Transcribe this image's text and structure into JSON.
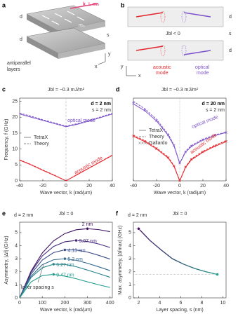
{
  "figure": {
    "a": {
      "label": "a",
      "wave_vector": "k ⊥ m₀",
      "magnetization": "m₀",
      "thickness_top": "d",
      "spacing": "s",
      "thickness_bottom": "d",
      "axis_y": "y",
      "axis_x": "x",
      "caption": [
        "antiparallel",
        "layers"
      ]
    },
    "b": {
      "label": "b",
      "coupling": "Jbl < 0",
      "thickness_top": "d",
      "spacing": "s",
      "thickness_bottom": "d",
      "axis_y": "y",
      "axis_x": "x",
      "acoustic": [
        "acoustic",
        "mode"
      ],
      "optical": [
        "optical",
        "mode"
      ]
    }
  },
  "chart_data": [
    {
      "type": "line",
      "label": "c",
      "title": "Jbl = −0.3 mJ/m²",
      "annotations": [
        "d = 2 nm",
        "s = 2 nm"
      ],
      "xlabel": "Wave vector, k (rad/μm)",
      "ylabel": "Frequency, f (GHz)",
      "xlim": [
        -40,
        40
      ],
      "ylim": [
        0,
        26
      ],
      "xticks": [
        -40,
        -20,
        0,
        20,
        40
      ],
      "yticks": [
        0,
        5,
        10,
        15,
        20,
        25
      ],
      "x": [
        -40,
        -30,
        -20,
        -10,
        0,
        10,
        20,
        30,
        40
      ],
      "legend": [
        {
          "name": "TetraX",
          "style": "solid"
        },
        {
          "name": "Theory",
          "style": "dashed"
        }
      ],
      "series": [
        {
          "name": "optical mode",
          "color": "#7b52c9",
          "values": [
            [
              21.0,
              20.0,
              19.0,
              18.0,
              17.0,
              17.8,
              18.8,
              19.9,
              21.0
            ],
            [
              21.3,
              20.3,
              19.2,
              18.2,
              17.2,
              18.0,
              19.0,
              20.1,
              21.2
            ]
          ]
        },
        {
          "name": "acoustic mode",
          "color": "#e3262d",
          "values": [
            [
              6.5,
              5.0,
              3.3,
              1.7,
              0,
              2.0,
              4.0,
              6.0,
              8.0
            ],
            [
              6.6,
              5.1,
              3.4,
              1.8,
              0,
              2.1,
              4.1,
              6.1,
              8.1
            ]
          ]
        }
      ]
    },
    {
      "type": "line",
      "label": "d",
      "title": "Jbl = −0.3 mJ/m²",
      "annotations": [
        "d = 20 nm",
        "s = 2 nm"
      ],
      "xlabel": "Wave vector, k (rad/μm)",
      "xlim": [
        -40,
        40
      ],
      "ylim": [
        0,
        26
      ],
      "xticks": [
        -40,
        -20,
        0,
        20,
        40
      ],
      "x": [
        -40,
        -30,
        -20,
        -10,
        -5,
        0,
        5,
        10,
        20,
        30,
        40
      ],
      "legend": [
        {
          "name": "TetraX",
          "style": "solid"
        },
        {
          "name": "Theory",
          "style": "dashed"
        },
        {
          "name": "Gallardo",
          "style": "cross"
        }
      ],
      "series": [
        {
          "name": "optical mode",
          "color": "#7b52c9",
          "values": [
            [
              24.2,
              22.0,
              18.8,
              14.3,
              11.0,
              5.5,
              9.0,
              10.8,
              12.8,
              14.2,
              15.2
            ],
            [
              25.0,
              22.6,
              19.3,
              14.7,
              11.3,
              5.5,
              9.3,
              11.1,
              13.1,
              14.4,
              15.3
            ],
            [
              24.4,
              22.2,
              18.9,
              14.4,
              11.1,
              5.6,
              9.1,
              10.9,
              12.9,
              14.3,
              15.2
            ]
          ]
        },
        {
          "name": "acoustic mode",
          "color": "#e3262d",
          "values": [
            [
              14.0,
              12.3,
              10.0,
              7.2,
              4.6,
              0,
              4.2,
              6.6,
              9.0,
              10.8,
              12.3
            ],
            [
              14.3,
              12.6,
              10.3,
              7.5,
              4.8,
              0,
              4.4,
              6.9,
              9.3,
              11.1,
              12.6
            ],
            [
              14.1,
              12.4,
              10.1,
              7.3,
              4.7,
              0,
              4.3,
              6.7,
              9.1,
              10.9,
              12.4
            ]
          ]
        }
      ]
    },
    {
      "type": "line",
      "label": "e",
      "title": "Jbl = 0",
      "annotations": [
        "d = 2 nm",
        "layer spacing s"
      ],
      "xlabel": "Wave vector, k (rad/μm)",
      "ylabel": "Asymmetry, |Δf| (GHz)",
      "xlim": [
        0,
        410
      ],
      "ylim": [
        0,
        5.8
      ],
      "xticks": [
        0,
        100,
        200,
        300,
        400
      ],
      "yticks": [
        0,
        1,
        2,
        3,
        4,
        5
      ],
      "x": [
        0,
        50,
        100,
        150,
        200,
        250,
        300,
        350,
        400
      ],
      "series": [
        {
          "name": "2 nm",
          "color": "#3b0f5e",
          "values": [
            0,
            2.03,
            3.44,
            4.37,
            4.93,
            5.22,
            5.3,
            5.23,
            5.07
          ]
        },
        {
          "name": "3.07 nm",
          "color": "#43287a",
          "values": [
            0,
            1.96,
            3.21,
            3.94,
            4.3,
            4.4,
            4.32,
            4.13,
            3.86
          ]
        },
        {
          "name": "4.13 nm",
          "color": "#3b4c8a",
          "values": [
            0,
            1.82,
            2.9,
            3.47,
            3.68,
            3.67,
            3.51,
            3.26,
            2.97
          ]
        },
        {
          "name": "5.2 nm",
          "color": "#33688e",
          "values": [
            0,
            1.65,
            2.54,
            2.92,
            3.0,
            2.88,
            2.65,
            2.38,
            2.09
          ]
        },
        {
          "name": "6.27 nm",
          "color": "#27828e",
          "values": [
            0,
            1.55,
            2.31,
            2.58,
            2.56,
            2.39,
            2.13,
            1.86,
            1.58
          ]
        },
        {
          "name": "9.47 nm",
          "color": "#1f9a8a",
          "values": [
            0,
            1.22,
            1.71,
            1.8,
            1.67,
            1.47,
            1.23,
            1.0,
            0.8
          ]
        }
      ]
    },
    {
      "type": "line",
      "label": "f",
      "title": "Jbl = 0",
      "annotations": [
        "d = 2 nm"
      ],
      "xlabel": "Layer spacing, s (nm)",
      "ylabel": "Max. asymmetry, |Δfmax| (GHz)",
      "xlim": [
        1.5,
        10.3
      ],
      "ylim": [
        0,
        5.8
      ],
      "xticks": [
        2,
        4,
        6,
        8,
        10
      ],
      "yticks": [
        0,
        1,
        2,
        3,
        4,
        5
      ],
      "x": [
        2,
        3.07,
        4.13,
        5.2,
        6.27,
        7.33,
        8.4,
        9.47
      ],
      "series": [
        {
          "color": [
            "#3b0f5e",
            "#1f9a8a"
          ],
          "values": [
            5.3,
            4.4,
            3.68,
            3.0,
            2.58,
            2.25,
            2.0,
            1.8
          ]
        }
      ]
    }
  ]
}
